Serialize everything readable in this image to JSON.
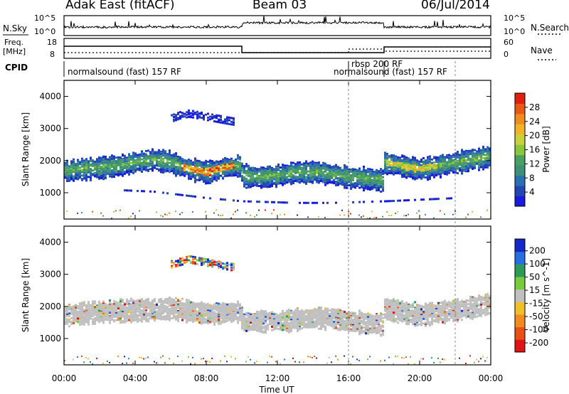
{
  "header": {
    "station": "Adak East (fitACF)",
    "beam": "Beam 03",
    "date": "06/Jul/2014"
  },
  "strip": {
    "nsky_label": "N.Sky",
    "nsearch_label": "N.Search",
    "freq_label": "Freq.",
    "freq_unit": "[MHz]",
    "cpid_label": "CPID",
    "nave_label": "Nave",
    "log_top": "10^5",
    "log_bottom": "10^0",
    "freq_ticks": [
      "18",
      "8"
    ],
    "nave_ticks": [
      "60",
      "0"
    ],
    "cpid_segments": [
      {
        "label": "normalsound (fast) 157 RF",
        "start_hour": 0
      },
      {
        "label": "rbsp 200 RF",
        "start_hour": 16
      },
      {
        "label": "normalsound (fast) 157 RF",
        "start_hour": 18
      }
    ]
  },
  "chart_data": [
    {
      "type": "heatmap",
      "title": "",
      "xlabel": "",
      "ylabel": "Slant Range [km]",
      "xlim": [
        0,
        24
      ],
      "ylim": [
        180,
        4500
      ],
      "yticks": [
        "1000",
        "2000",
        "3000",
        "4000"
      ],
      "colorbar": {
        "label": "Power [dB]",
        "ticks": [
          "4",
          "8",
          "12",
          "16",
          "20",
          "24",
          "28"
        ],
        "colors": [
          "#1a1adc",
          "#2446b4",
          "#2a6fb0",
          "#3f8e78",
          "#4aa060",
          "#8cc63c",
          "#c8d23c",
          "#f0b428",
          "#f08c1e",
          "#e85a14",
          "#e02010"
        ]
      },
      "series": [
        {
          "kind": "main_band",
          "x_hours": [
            0.0,
            1.0,
            2.0,
            3.0,
            4.0,
            5.0,
            6.0,
            7.0,
            8.0,
            9.0,
            9.9,
            10.0,
            11.0,
            12.0,
            13.0,
            14.0,
            15.0,
            16.0,
            17.0,
            17.9,
            18.0,
            19.0,
            20.0,
            21.0,
            22.0,
            23.0,
            24.0
          ],
          "range_km": [
            1650,
            1700,
            1750,
            1800,
            1900,
            2000,
            1900,
            1700,
            1600,
            1750,
            1800,
            1500,
            1450,
            1500,
            1600,
            1600,
            1550,
            1450,
            1400,
            1350,
            1900,
            1800,
            1700,
            1800,
            1900,
            2000,
            2100
          ]
        },
        {
          "kind": "upper_echo",
          "x_hours": [
            6.0,
            6.5,
            7.0,
            7.5,
            8.0,
            8.5,
            9.0,
            9.5
          ],
          "range_km": [
            3300,
            3400,
            3450,
            3400,
            3350,
            3300,
            3250,
            3200
          ]
        },
        {
          "kind": "lower_echo",
          "x_hours": [
            3.0,
            5.0,
            8.0,
            10.0,
            13.0,
            15.0,
            18.0,
            20.0,
            22.0
          ],
          "range_km": [
            1050,
            1000,
            800,
            700,
            650,
            650,
            700,
            750,
            800
          ]
        }
      ]
    },
    {
      "type": "heatmap",
      "title": "",
      "xlabel": "Time UT",
      "ylabel": "Slant Range [km]",
      "xlim": [
        0,
        24
      ],
      "ylim": [
        180,
        4500
      ],
      "xticks": [
        "00:00",
        "04:00",
        "08:00",
        "12:00",
        "16:00",
        "20:00",
        "00:00"
      ],
      "yticks": [
        "1000",
        "2000",
        "3000",
        "4000"
      ],
      "colorbar": {
        "label": "Velocity [m s^-1]",
        "ticks": [
          "200",
          "100",
          "50",
          "15",
          "-15",
          "-50",
          "-100",
          "-200"
        ],
        "colors": [
          "#1428c8",
          "#286ee0",
          "#2e9a5a",
          "#78cc3c",
          "#c0c0c0",
          "#f0c028",
          "#f08c1e",
          "#e85014",
          "#e01414"
        ]
      },
      "series": [
        {
          "kind": "ground_scatter",
          "x_hours": [
            0.0,
            2.0,
            4.0,
            6.0,
            8.0,
            9.9,
            10.0,
            12.0,
            14.0,
            15.0,
            16.0,
            17.9,
            18.0,
            20.0,
            22.0,
            24.0
          ],
          "range_km": [
            1700,
            1800,
            1850,
            1900,
            1750,
            1800,
            1500,
            1500,
            1600,
            1600,
            1500,
            1400,
            1900,
            1700,
            1850,
            2050
          ]
        },
        {
          "kind": "upper_echo",
          "x_hours": [
            6.0,
            7.0,
            8.0,
            9.0,
            9.5
          ],
          "range_km": [
            3300,
            3450,
            3350,
            3250,
            3200
          ]
        },
        {
          "kind": "green_patches",
          "x_hours": [
            14.0,
            15.0,
            16.0,
            17.0
          ],
          "range_km": [
            1750,
            1700,
            1650,
            1600
          ]
        }
      ]
    }
  ]
}
